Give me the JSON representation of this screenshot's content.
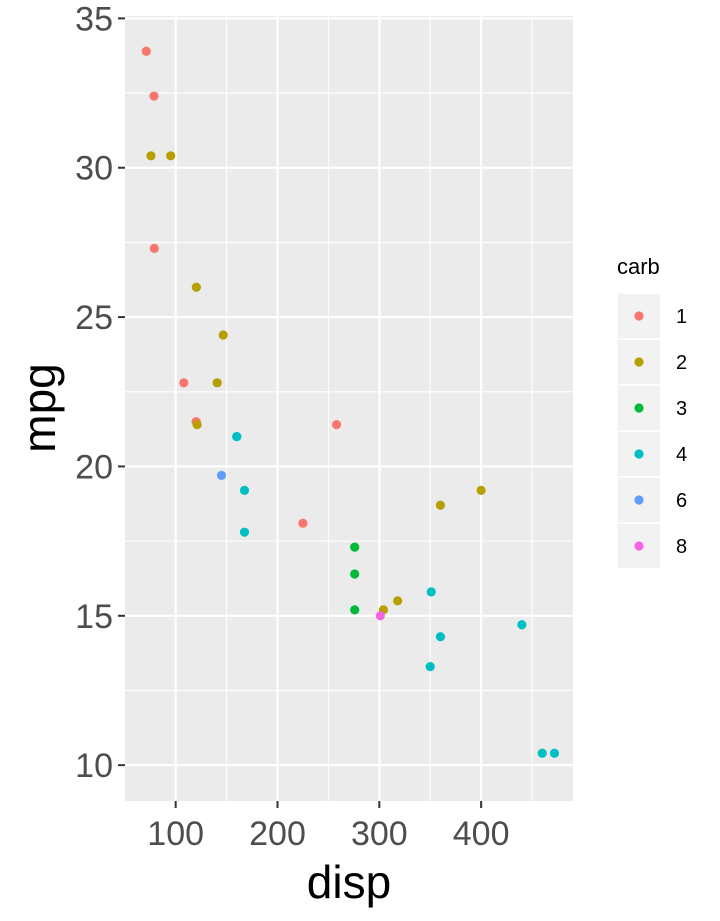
{
  "chart_data": {
    "type": "scatter",
    "title": "",
    "xlabel": "disp",
    "ylabel": "mpg",
    "xlim": [
      50.23,
      490.22
    ],
    "ylim": [
      8.8,
      35.08
    ],
    "x_ticks": [
      100,
      200,
      300,
      400
    ],
    "y_ticks": [
      10,
      15,
      20,
      25,
      30,
      35
    ],
    "grid": true,
    "legend": {
      "title": "carb",
      "placement": "right",
      "entries": [
        {
          "label": "1",
          "color": "#F8766D"
        },
        {
          "label": "2",
          "color": "#B79F00"
        },
        {
          "label": "3",
          "color": "#00BA38"
        },
        {
          "label": "4",
          "color": "#00BFC4"
        },
        {
          "label": "6",
          "color": "#619CFF"
        },
        {
          "label": "8",
          "color": "#F564E3"
        }
      ]
    },
    "series": [
      {
        "name": "1",
        "color": "#F8766D",
        "points": [
          {
            "x": 108,
            "y": 22.8
          },
          {
            "x": 258,
            "y": 21.4
          },
          {
            "x": 225,
            "y": 18.1
          },
          {
            "x": 78.7,
            "y": 32.4
          },
          {
            "x": 71.1,
            "y": 33.9
          },
          {
            "x": 120.1,
            "y": 21.5
          },
          {
            "x": 79,
            "y": 27.3
          }
        ]
      },
      {
        "name": "2",
        "color": "#B79F00",
        "points": [
          {
            "x": 360,
            "y": 18.7
          },
          {
            "x": 146.7,
            "y": 24.4
          },
          {
            "x": 140.8,
            "y": 22.8
          },
          {
            "x": 75.7,
            "y": 30.4
          },
          {
            "x": 318,
            "y": 15.5
          },
          {
            "x": 304,
            "y": 15.2
          },
          {
            "x": 400,
            "y": 19.2
          },
          {
            "x": 120.3,
            "y": 26.0
          },
          {
            "x": 95.1,
            "y": 30.4
          },
          {
            "x": 121,
            "y": 21.4
          }
        ]
      },
      {
        "name": "3",
        "color": "#00BA38",
        "points": [
          {
            "x": 275.8,
            "y": 16.4
          },
          {
            "x": 275.8,
            "y": 17.3
          },
          {
            "x": 275.8,
            "y": 15.2
          }
        ]
      },
      {
        "name": "4",
        "color": "#00BFC4",
        "points": [
          {
            "x": 160,
            "y": 21.0
          },
          {
            "x": 160,
            "y": 21.0
          },
          {
            "x": 360,
            "y": 14.3
          },
          {
            "x": 167.6,
            "y": 19.2
          },
          {
            "x": 167.6,
            "y": 17.8
          },
          {
            "x": 472,
            "y": 10.4
          },
          {
            "x": 460,
            "y": 10.4
          },
          {
            "x": 440,
            "y": 14.7
          },
          {
            "x": 350,
            "y": 13.3
          },
          {
            "x": 351,
            "y": 15.8
          }
        ]
      },
      {
        "name": "6",
        "color": "#619CFF",
        "points": [
          {
            "x": 145,
            "y": 19.7
          }
        ]
      },
      {
        "name": "8",
        "color": "#F564E3",
        "points": [
          {
            "x": 301,
            "y": 15.0
          }
        ]
      }
    ]
  }
}
